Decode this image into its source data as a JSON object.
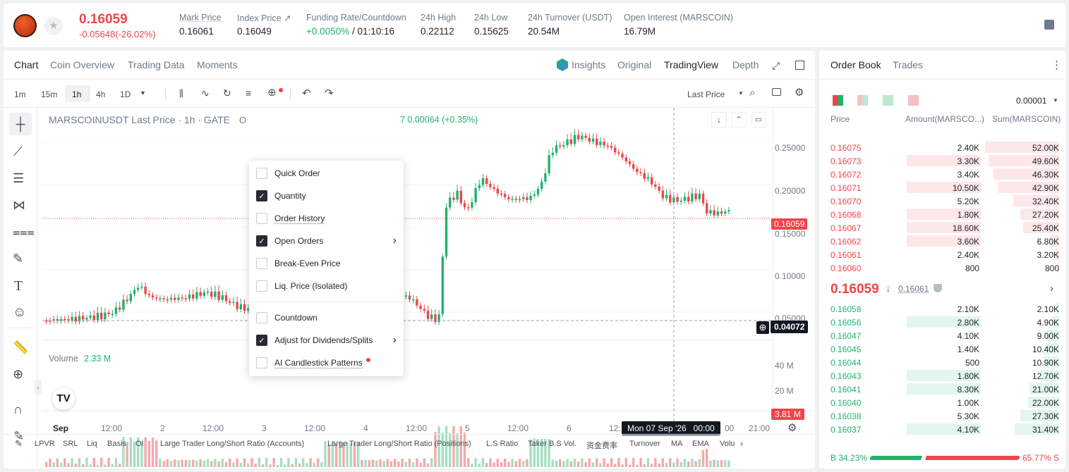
{
  "header": {
    "price": "0.16059",
    "change": "-0.05648(-26.02%)",
    "stats": [
      {
        "label": "Mark Price",
        "value": "0.16061"
      },
      {
        "label": "Index Price ↗",
        "value": "0.16049"
      },
      {
        "label": "Funding Rate/Countdown",
        "value_green": "+0.0050%",
        "value": " / 01:10:16"
      },
      {
        "label": "24h High",
        "value": "0.22112"
      },
      {
        "label": "24h Low",
        "value": "0.15625"
      },
      {
        "label": "24h Turnover (USDT)",
        "value": "20.54M"
      },
      {
        "label": "Open Interest (MARSCOIN)",
        "value": "16.79M"
      }
    ]
  },
  "tabs": [
    "Chart",
    "Coin Overview",
    "Trading Data",
    "Moments"
  ],
  "views": {
    "insights": "Insights",
    "original": "Original",
    "tradingview": "TradingView",
    "depth": "Depth"
  },
  "intervals": [
    "1m",
    "15m",
    "1h",
    "4h",
    "1D"
  ],
  "last_price_select": "Last Price",
  "chart": {
    "symbol": "MARSCOINUSDT Last Price · 1h · GATE",
    "ohlc_prefix": "O",
    "ohlc_change": "7  0.00064 (+0.35%)",
    "y_ticks": [
      "0.25000",
      "0.20000",
      "0.15000",
      "0.10000",
      "0.05000"
    ],
    "last_price_tag": "0.16059",
    "cross_price_tag": "0.04072",
    "volume_label": "Volume",
    "volume_value": "2.33 M",
    "vol_ticks": [
      "40 M",
      "20 M"
    ],
    "vol_tag": "3.81 M",
    "x_ticks": [
      "Sep",
      "12:00",
      "2",
      "12:00",
      "3",
      "12:00",
      "4",
      "12:00",
      "5",
      "12:00",
      "6",
      "12:"
    ],
    "x_tail": "00",
    "x_end": "21:00",
    "crosshair_time": "Mon 07 Sep '26   00:00"
  },
  "chart_data": {
    "type": "candlestick",
    "series": [
      {
        "name": "Volume",
        "values": []
      }
    ]
  },
  "menu": {
    "items": [
      {
        "label": "Quick Order",
        "checked": false
      },
      {
        "label": "Quantity",
        "checked": true
      },
      {
        "label": "Order History",
        "checked": false
      },
      {
        "label": "Open Orders",
        "checked": true,
        "arrow": true
      },
      {
        "label": "Break-Even Price",
        "checked": false
      },
      {
        "label": "Liq. Price (Isolated)",
        "checked": false
      },
      {
        "label": "Countdown",
        "checked": false
      },
      {
        "label": "Adjust for Dividends/Splits",
        "checked": true,
        "arrow": true
      },
      {
        "label": "AI Candlestick Patterns",
        "checked": false
      }
    ]
  },
  "bottom_indicators": [
    "LPVR",
    "SRL",
    "Liq",
    "Basis",
    "OI",
    "Large Trader Long/Short Ratio (Accounts)",
    "Large Trader Long/Short Ratio (Positions)",
    "L.S Ratio",
    "Taker B.S Vol.",
    "资金费率",
    "Turnover",
    "MA",
    "EMA",
    "Volu"
  ],
  "orderbook": {
    "tabs": [
      "Order Book",
      "Trades"
    ],
    "precision": "0.00001",
    "cols": [
      "Price",
      "Amount(MARSCO...)",
      "Sum(MARSCOIN)"
    ],
    "asks": [
      [
        "0.16075",
        "2.40K",
        "52.00K"
      ],
      [
        "0.16073",
        "3.30K",
        "49.60K"
      ],
      [
        "0.16072",
        "3.40K",
        "46.30K"
      ],
      [
        "0.16071",
        "10.50K",
        "42.90K"
      ],
      [
        "0.16070",
        "5.20K",
        "32.40K"
      ],
      [
        "0.16068",
        "1.80K",
        "27.20K"
      ],
      [
        "0.16067",
        "18.60K",
        "25.40K"
      ],
      [
        "0.16062",
        "3.60K",
        "6.80K"
      ],
      [
        "0.16061",
        "2.40K",
        "3.20K"
      ],
      [
        "0.16060",
        "800",
        "800"
      ]
    ],
    "mid": "0.16059",
    "mark": "0.16061",
    "bids": [
      [
        "0.16058",
        "2.10K",
        "2.10K"
      ],
      [
        "0.16056",
        "2.80K",
        "4.90K"
      ],
      [
        "0.16047",
        "4.10K",
        "9.00K"
      ],
      [
        "0.16045",
        "1.40K",
        "10.40K"
      ],
      [
        "0.16044",
        "500",
        "10.90K"
      ],
      [
        "0.16043",
        "1.80K",
        "12.70K"
      ],
      [
        "0.16041",
        "8.30K",
        "21.00K"
      ],
      [
        "0.16040",
        "1.00K",
        "22.00K"
      ],
      [
        "0.16038",
        "5.30K",
        "27.30K"
      ],
      [
        "0.16037",
        "4.10K",
        "31.40K"
      ]
    ],
    "buy_ratio": "B 34.23%",
    "sell_ratio": "65.77% S",
    "buy_fraction": 0.3423
  }
}
